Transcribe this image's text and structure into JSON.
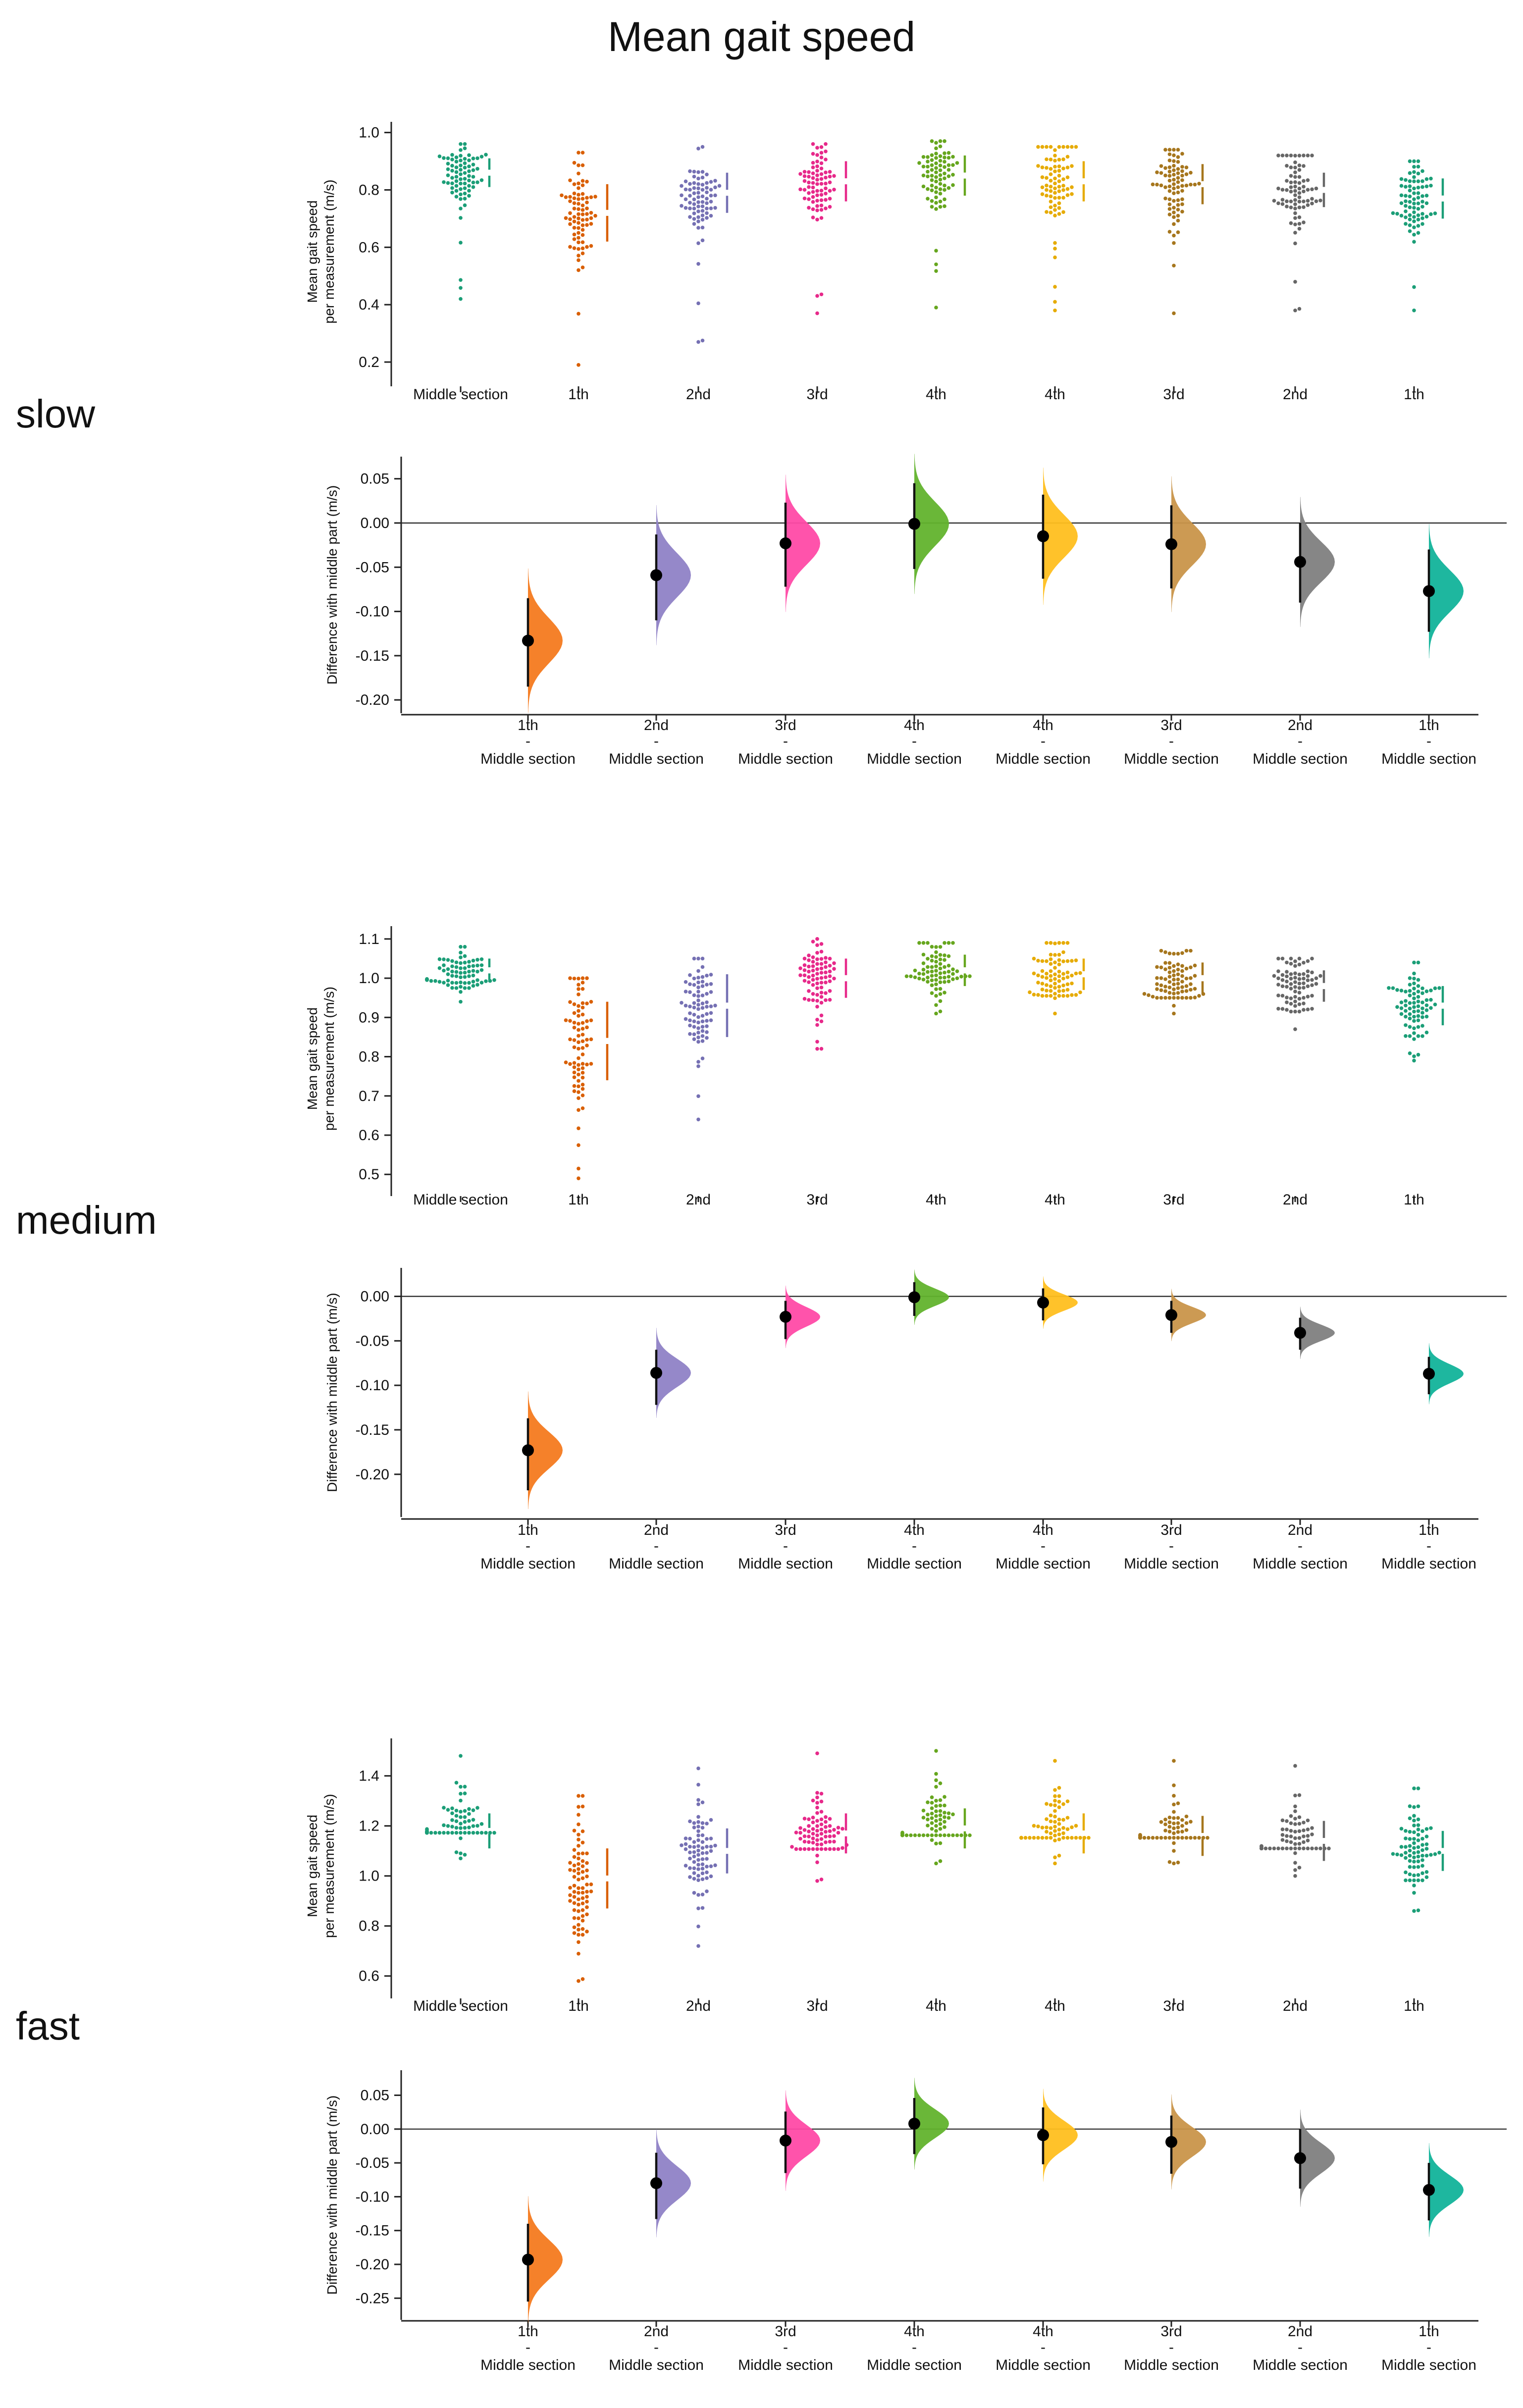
{
  "title": "Mean gait speed",
  "colors": {
    "Middle section": "#1b9e77",
    "1th": "#d95f02",
    "2nd": "#7570b3",
    "3rd": "#e7298a",
    "4th": "#66a61e",
    "4th_return": "#e6ab02",
    "3rd_return": "#a6761d",
    "2nd_return": "#666666",
    "1th_return": "#1b9e77"
  },
  "delta_colors": [
    "#f47a1f",
    "#8f82c6",
    "#ff4aa6",
    "#62b32d",
    "#ffbf1f",
    "#c9954a",
    "#7f7f7f",
    "#12b39a"
  ],
  "chart_data": [
    {
      "type": "scatter",
      "subtype": "swarm",
      "speed": "slow",
      "categories": [
        "Middle section",
        "1th",
        "2nd",
        "3rd",
        "4th",
        "4th",
        "3rd",
        "2nd",
        "1th"
      ],
      "ylabel": [
        "Mean gait speed",
        "per measurement (m/s)"
      ],
      "ylim": [
        0.15,
        1.02
      ],
      "yticks": [
        0.2,
        0.4,
        0.6,
        0.8,
        1.0
      ],
      "ytick_labels": [
        "0.2",
        "0.4",
        "0.6",
        "0.8",
        "1.0"
      ],
      "groups": [
        {
          "mean": 0.86,
          "sd": 0.05,
          "min": 0.42,
          "max": 0.96
        },
        {
          "mean": 0.72,
          "sd": 0.1,
          "min": 0.19,
          "max": 0.93
        },
        {
          "mean": 0.79,
          "sd": 0.07,
          "min": 0.27,
          "max": 0.95
        },
        {
          "mean": 0.83,
          "sd": 0.07,
          "min": 0.37,
          "max": 0.96
        },
        {
          "mean": 0.85,
          "sd": 0.07,
          "min": 0.39,
          "max": 0.97
        },
        {
          "mean": 0.83,
          "sd": 0.07,
          "min": 0.38,
          "max": 0.95
        },
        {
          "mean": 0.82,
          "sd": 0.07,
          "min": 0.37,
          "max": 0.94
        },
        {
          "mean": 0.8,
          "sd": 0.06,
          "min": 0.38,
          "max": 0.92
        },
        {
          "mean": 0.77,
          "sd": 0.07,
          "min": 0.38,
          "max": 0.9
        }
      ]
    },
    {
      "type": "scatter",
      "subtype": "estimation",
      "speed": "slow",
      "categories": [
        "1th",
        "2nd",
        "3rd",
        "4th",
        "4th",
        "3rd",
        "2nd",
        "1th"
      ],
      "category_sub": "Middle section",
      "ylabel": "Difference with middle part (m/s)",
      "ylim": [
        -0.215,
        0.075
      ],
      "yticks": [
        0.05,
        0.0,
        -0.05,
        -0.1,
        -0.15,
        -0.2
      ],
      "ytick_labels": [
        "0.05",
        "0.00",
        "-0.05",
        "-0.10",
        "-0.15",
        "-0.20"
      ],
      "values": [
        -0.133,
        -0.059,
        -0.023,
        -0.001,
        -0.015,
        -0.024,
        -0.044,
        -0.077
      ],
      "ci": [
        [
          -0.185,
          -0.085
        ],
        [
          -0.11,
          -0.013
        ],
        [
          -0.072,
          0.023
        ],
        [
          -0.052,
          0.045
        ],
        [
          -0.063,
          0.032
        ],
        [
          -0.074,
          0.02
        ],
        [
          -0.09,
          0.0
        ],
        [
          -0.123,
          -0.03
        ]
      ]
    },
    {
      "type": "scatter",
      "subtype": "swarm",
      "speed": "medium",
      "categories": [
        "Middle section",
        "1th",
        "2nd",
        "3rd",
        "4th",
        "4th",
        "3rd",
        "2nd",
        "1th"
      ],
      "ylabel": [
        "Mean gait speed",
        "per measurement (m/s)"
      ],
      "ylim": [
        0.47,
        1.12
      ],
      "yticks": [
        0.5,
        0.6,
        0.7,
        0.8,
        0.9,
        1.0,
        1.1
      ],
      "ytick_labels": [
        "0.5",
        "0.6",
        "0.7",
        "0.8",
        "0.9",
        "1.0",
        "1.1"
      ],
      "groups": [
        {
          "mean": 1.02,
          "sd": 0.03,
          "min": 0.94,
          "max": 1.08
        },
        {
          "mean": 0.84,
          "sd": 0.1,
          "min": 0.49,
          "max": 1.0
        },
        {
          "mean": 0.93,
          "sd": 0.08,
          "min": 0.64,
          "max": 1.05
        },
        {
          "mean": 1.0,
          "sd": 0.05,
          "min": 0.82,
          "max": 1.1
        },
        {
          "mean": 1.02,
          "sd": 0.04,
          "min": 0.91,
          "max": 1.09
        },
        {
          "mean": 1.01,
          "sd": 0.04,
          "min": 0.91,
          "max": 1.09
        },
        {
          "mean": 1.0,
          "sd": 0.04,
          "min": 0.91,
          "max": 1.07
        },
        {
          "mean": 0.98,
          "sd": 0.04,
          "min": 0.87,
          "max": 1.05
        },
        {
          "mean": 0.93,
          "sd": 0.05,
          "min": 0.79,
          "max": 1.04
        }
      ]
    },
    {
      "type": "scatter",
      "subtype": "estimation",
      "speed": "medium",
      "categories": [
        "1th",
        "2nd",
        "3rd",
        "4th",
        "4th",
        "3rd",
        "2nd",
        "1th"
      ],
      "category_sub": "Middle section",
      "ylabel": "Difference with middle part (m/s)",
      "ylim": [
        -0.248,
        0.032
      ],
      "yticks": [
        0.0,
        -0.05,
        -0.1,
        -0.15,
        -0.2
      ],
      "ytick_labels": [
        "0.00",
        "-0.05",
        "-0.10",
        "-0.15",
        "-0.20"
      ],
      "values": [
        -0.173,
        -0.086,
        -0.023,
        -0.001,
        -0.007,
        -0.021,
        -0.041,
        -0.087
      ],
      "ci": [
        [
          -0.218,
          -0.137
        ],
        [
          -0.122,
          -0.06
        ],
        [
          -0.048,
          -0.005
        ],
        [
          -0.022,
          0.016
        ],
        [
          -0.027,
          0.009
        ],
        [
          -0.041,
          -0.005
        ],
        [
          -0.06,
          -0.024
        ],
        [
          -0.11,
          -0.068
        ]
      ]
    },
    {
      "type": "scatter",
      "subtype": "swarm",
      "speed": "fast",
      "categories": [
        "Middle section",
        "1th",
        "2nd",
        "3rd",
        "4th",
        "4th",
        "3rd",
        "2nd",
        "1th"
      ],
      "ylabel": [
        "Mean gait speed",
        "per measurement (m/s)"
      ],
      "ylim": [
        0.55,
        1.53
      ],
      "yticks": [
        0.6,
        0.8,
        1.0,
        1.2,
        1.4
      ],
      "ytick_labels": [
        "0.6",
        "0.8",
        "1.0",
        "1.2",
        "1.4"
      ],
      "groups": [
        {
          "mean": 1.18,
          "sd": 0.07,
          "min": 1.07,
          "max": 1.48
        },
        {
          "mean": 0.99,
          "sd": 0.12,
          "min": 0.58,
          "max": 1.32
        },
        {
          "mean": 1.1,
          "sd": 0.09,
          "min": 0.72,
          "max": 1.43
        },
        {
          "mean": 1.17,
          "sd": 0.08,
          "min": 0.98,
          "max": 1.49
        },
        {
          "mean": 1.19,
          "sd": 0.08,
          "min": 1.05,
          "max": 1.5
        },
        {
          "mean": 1.17,
          "sd": 0.08,
          "min": 1.05,
          "max": 1.46
        },
        {
          "mean": 1.16,
          "sd": 0.08,
          "min": 1.05,
          "max": 1.46
        },
        {
          "mean": 1.14,
          "sd": 0.08,
          "min": 1.0,
          "max": 1.44
        },
        {
          "mean": 1.1,
          "sd": 0.08,
          "min": 0.86,
          "max": 1.35
        }
      ]
    },
    {
      "type": "scatter",
      "subtype": "estimation",
      "speed": "fast",
      "categories": [
        "1th",
        "2nd",
        "3rd",
        "4th",
        "4th",
        "3rd",
        "2nd",
        "1th"
      ],
      "category_sub": "Middle section",
      "ylabel": "Difference with middle part (m/s)",
      "ylim": [
        -0.282,
        0.087
      ],
      "yticks": [
        0.05,
        0.0,
        -0.05,
        -0.1,
        -0.15,
        -0.2,
        -0.25
      ],
      "ytick_labels": [
        "0.05",
        "0.00",
        "-0.05",
        "-0.10",
        "-0.15",
        "-0.20",
        "-0.25"
      ],
      "values": [
        -0.193,
        -0.08,
        -0.017,
        0.008,
        -0.009,
        -0.019,
        -0.043,
        -0.09
      ],
      "ci": [
        [
          -0.255,
          -0.14
        ],
        [
          -0.133,
          -0.035
        ],
        [
          -0.065,
          0.026
        ],
        [
          -0.037,
          0.046
        ],
        [
          -0.052,
          0.032
        ],
        [
          -0.066,
          0.02
        ],
        [
          -0.088,
          0.0
        ],
        [
          -0.135,
          -0.05
        ]
      ]
    }
  ],
  "speed_labels": [
    "slow",
    "medium",
    "fast"
  ]
}
